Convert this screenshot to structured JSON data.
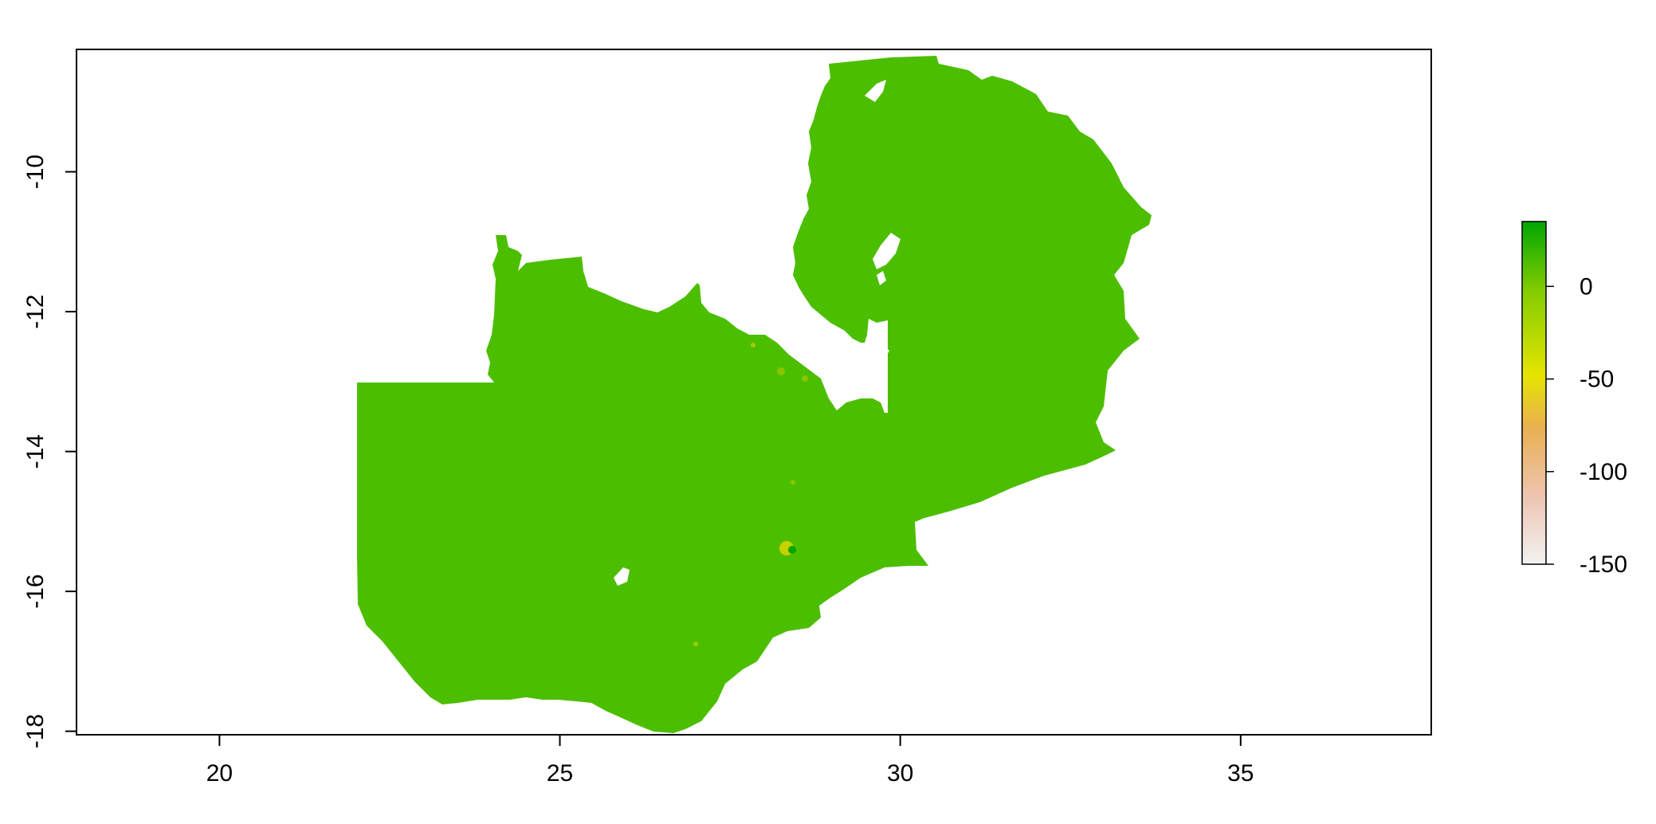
{
  "chart_data": {
    "type": "heatmap",
    "title": "",
    "xlabel": "",
    "ylabel": "",
    "xlim": [
      17.9,
      37.8
    ],
    "ylim": [
      -18.05,
      -8.25
    ],
    "x_ticks": [
      20,
      25,
      30,
      35
    ],
    "y_ticks": [
      -10,
      -12,
      -14,
      -16,
      -18
    ],
    "x_tick_labels": [
      "20",
      "25",
      "30",
      "35"
    ],
    "y_tick_labels": [
      "-10",
      "-12",
      "-14",
      "-16",
      "-18"
    ],
    "raster": {
      "dominant_value": 0,
      "dominant_color": "#4cbe00",
      "value_range": [
        -150,
        30
      ]
    },
    "legend": {
      "placement": "right",
      "range": [
        -150,
        35
      ],
      "ticks": [
        0,
        -50,
        -100,
        -150
      ],
      "tick_labels": [
        "0",
        "-50",
        "-100",
        "-150"
      ],
      "color_stops": [
        "#f2f2f2",
        "#eec4b0",
        "#e8b050",
        "#e6e500",
        "#82cc00",
        "#00a600"
      ]
    },
    "grid": false
  }
}
